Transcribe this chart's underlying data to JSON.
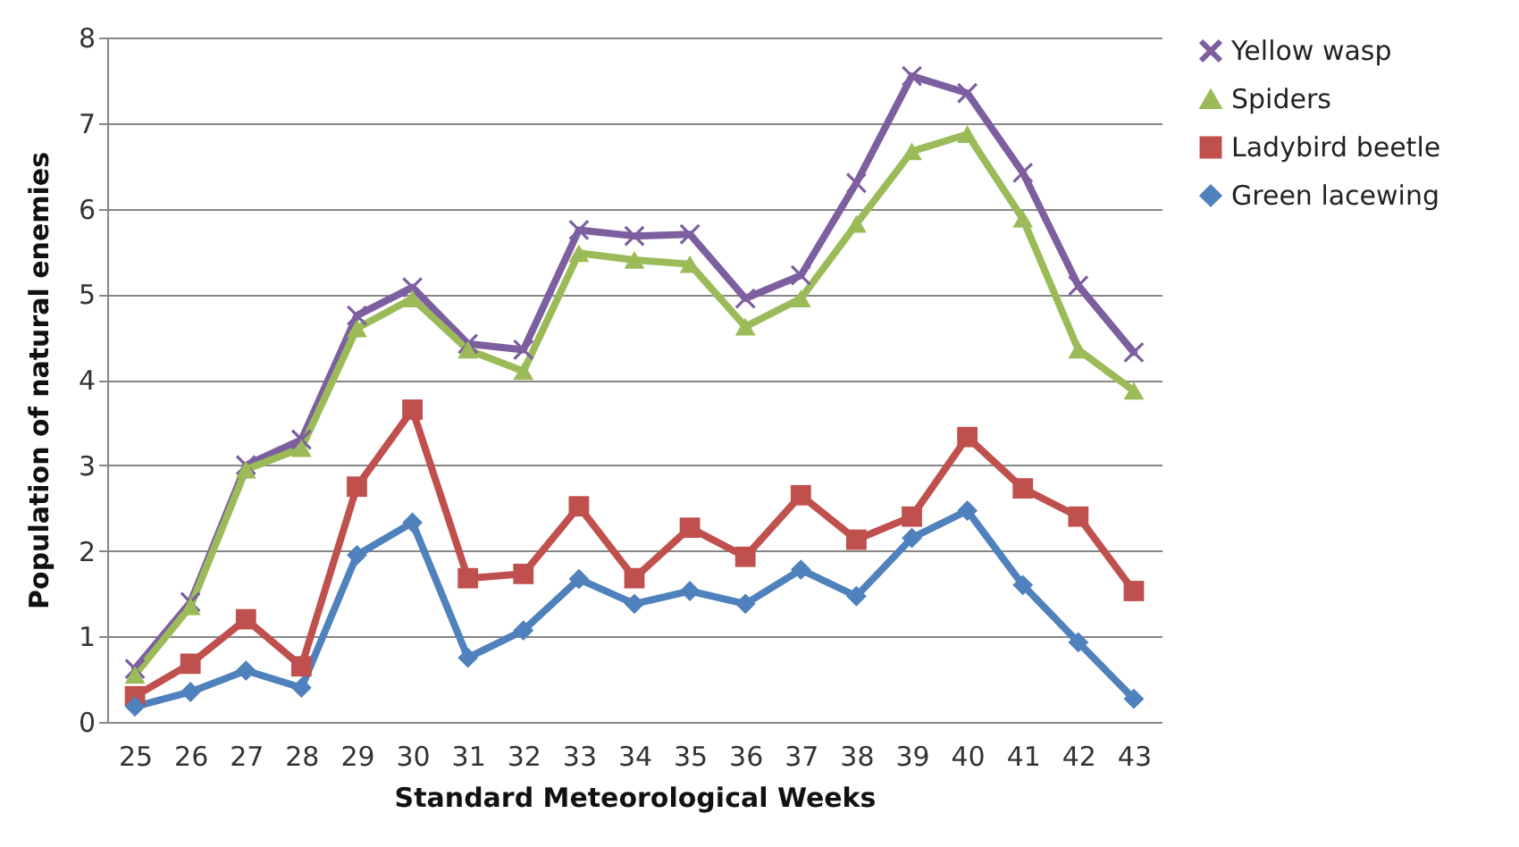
{
  "chart_data": {
    "type": "line",
    "xlabel": "Standard Meteorological Weeks",
    "ylabel": "Population of natural enemies",
    "categories": [
      "25",
      "26",
      "27",
      "28",
      "29",
      "30",
      "31",
      "32",
      "33",
      "34",
      "35",
      "36",
      "37",
      "38",
      "39",
      "40",
      "41",
      "42",
      "43"
    ],
    "ylim": [
      0,
      8
    ],
    "yticks": [
      0,
      1,
      2,
      3,
      4,
      5,
      6,
      7,
      8
    ],
    "grid": "y",
    "legend": "right",
    "series": [
      {
        "name": "Yellow wasp",
        "color": "#7d5fa0",
        "marker": "cross",
        "values": [
          0.62,
          1.4,
          3.0,
          3.3,
          4.75,
          5.08,
          4.42,
          4.35,
          5.75,
          5.68,
          5.7,
          4.95,
          5.22,
          6.3,
          7.55,
          7.35,
          6.42,
          5.1,
          4.32
        ]
      },
      {
        "name": "Spiders",
        "color": "#9bbb59",
        "marker": "triangle",
        "values": [
          0.55,
          1.35,
          2.95,
          3.2,
          4.6,
          4.95,
          4.35,
          4.1,
          5.48,
          5.4,
          5.35,
          4.62,
          4.95,
          5.82,
          6.67,
          6.87,
          5.88,
          4.35,
          3.87
        ]
      },
      {
        "name": "Ladybird beetle",
        "color": "#c0504d",
        "marker": "square",
        "values": [
          0.3,
          0.68,
          1.2,
          0.65,
          2.75,
          3.65,
          1.68,
          1.73,
          2.52,
          1.68,
          2.27,
          1.93,
          2.65,
          2.13,
          2.4,
          3.33,
          2.73,
          2.4,
          1.53
        ]
      },
      {
        "name": "Green lacewing",
        "color": "#4f81bd",
        "marker": "diamond",
        "values": [
          0.18,
          0.35,
          0.6,
          0.4,
          1.95,
          2.33,
          0.75,
          1.07,
          1.67,
          1.38,
          1.53,
          1.38,
          1.78,
          1.47,
          2.15,
          2.47,
          1.6,
          0.93,
          0.27
        ]
      }
    ]
  }
}
